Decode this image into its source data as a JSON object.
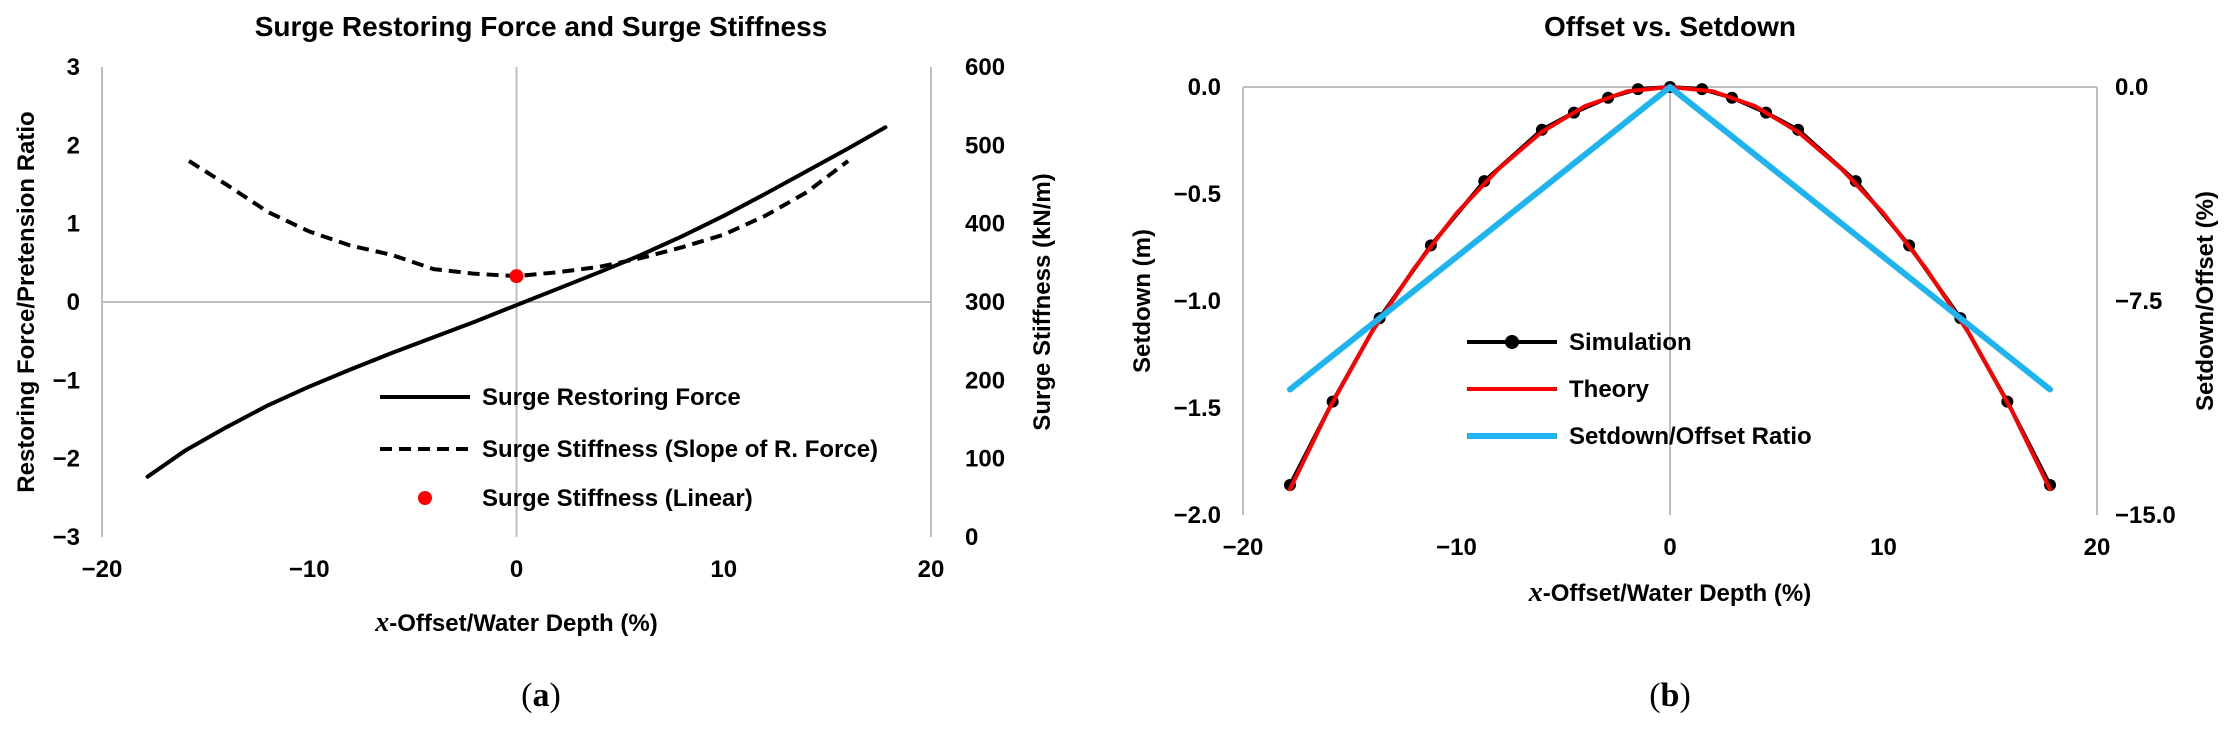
{
  "chart_data": [
    {
      "id": "a",
      "type": "line",
      "title": "Surge Restoring Force and Surge Stiffness",
      "xlabel_prefix": "x",
      "xlabel_rest": "-Offset/Water Depth (%)",
      "ylabel": "Restoring Force/Pretension Ratio",
      "y2label": "Surge Stiffness (kN/m)",
      "xlim": [
        -20,
        20
      ],
      "ylim": [
        -3,
        3
      ],
      "y2lim": [
        0,
        600
      ],
      "xticks": [
        -20,
        -10,
        0,
        10,
        20
      ],
      "yticks": [
        -3,
        -2,
        -1,
        0,
        1,
        2,
        3
      ],
      "y2ticks": [
        0,
        100,
        200,
        300,
        400,
        500,
        600
      ],
      "caption_left": "(",
      "caption_mid": "a",
      "caption_right": ")",
      "series": [
        {
          "name": "Surge Restoring Force",
          "axis": "left",
          "style": "solid",
          "color": "#000000",
          "x": [
            -17.8,
            -16,
            -14,
            -12,
            -10,
            -8,
            -6,
            -4,
            -2,
            0,
            2,
            4,
            6,
            8,
            10,
            12,
            14,
            16,
            17.8
          ],
          "y": [
            -2.23,
            -1.9,
            -1.6,
            -1.32,
            -1.08,
            -0.86,
            -0.65,
            -0.45,
            -0.25,
            -0.04,
            0.17,
            0.38,
            0.6,
            0.84,
            1.1,
            1.38,
            1.67,
            1.96,
            2.23
          ]
        },
        {
          "name": "Surge Stiffness (Slope of R. Force)",
          "axis": "right",
          "style": "dashed",
          "color": "#000000",
          "x": [
            -15.8,
            -14,
            -12,
            -10,
            -8,
            -6,
            -4,
            -2,
            0,
            2,
            4,
            6,
            8,
            10,
            12,
            14,
            16
          ],
          "y": [
            480,
            450,
            415,
            390,
            372,
            360,
            342,
            336,
            333,
            338,
            345,
            356,
            370,
            386,
            410,
            440,
            480
          ]
        },
        {
          "name": "Surge Stiffness (Linear)",
          "axis": "right",
          "style": "marker",
          "color": "#ff0000",
          "x": [
            0
          ],
          "y": [
            333
          ]
        }
      ]
    },
    {
      "id": "b",
      "type": "line",
      "title": "Offset vs. Setdown",
      "xlabel_prefix": "x",
      "xlabel_rest": "-Offset/Water Depth (%)",
      "ylabel": "Setdown (m)",
      "y2label": "Setdown/Offset (%)",
      "xlim": [
        -20,
        20
      ],
      "ylim": [
        -2.0,
        0.0
      ],
      "y2lim": [
        -15.0,
        0.0
      ],
      "xticks": [
        -20,
        -10,
        0,
        10,
        20
      ],
      "yticks": [
        -2.0,
        -1.5,
        -1.0,
        -0.5,
        0.0
      ],
      "y2ticks": [
        -15.0,
        -7.5,
        0.0
      ],
      "caption_left": "(",
      "caption_mid": "b",
      "caption_right": ")",
      "series": [
        {
          "name": "Simulation",
          "axis": "left",
          "style": "line-marker",
          "color": "#000000",
          "x": [
            -17.8,
            -15.8,
            -13.6,
            -11.2,
            -8.7,
            -6.0,
            -4.5,
            -2.9,
            -1.5,
            0,
            1.5,
            2.9,
            4.5,
            6.0,
            8.7,
            11.2,
            13.6,
            15.8,
            17.8
          ],
          "y": [
            -1.86,
            -1.47,
            -1.08,
            -0.74,
            -0.44,
            -0.2,
            -0.12,
            -0.05,
            -0.01,
            0.0,
            -0.01,
            -0.05,
            -0.12,
            -0.2,
            -0.44,
            -0.74,
            -1.08,
            -1.47,
            -1.86
          ]
        },
        {
          "name": "Theory",
          "axis": "left",
          "style": "solid",
          "color": "#ff0000",
          "x": [
            -17.8,
            -16,
            -14,
            -12,
            -10,
            -8,
            -6,
            -4,
            -2,
            0,
            2,
            4,
            6,
            8,
            10,
            12,
            14,
            16,
            17.8
          ],
          "y": [
            -1.88,
            -1.51,
            -1.15,
            -0.85,
            -0.59,
            -0.38,
            -0.21,
            -0.09,
            -0.02,
            0.0,
            -0.02,
            -0.09,
            -0.21,
            -0.38,
            -0.59,
            -0.85,
            -1.15,
            -1.51,
            -1.88
          ]
        },
        {
          "name": "Setdown/Offset Ratio",
          "axis": "right",
          "style": "solid",
          "color": "#1eb4f0",
          "x": [
            -17.8,
            0,
            17.8
          ],
          "y": [
            -10.6,
            0.0,
            -10.6
          ]
        }
      ]
    }
  ]
}
